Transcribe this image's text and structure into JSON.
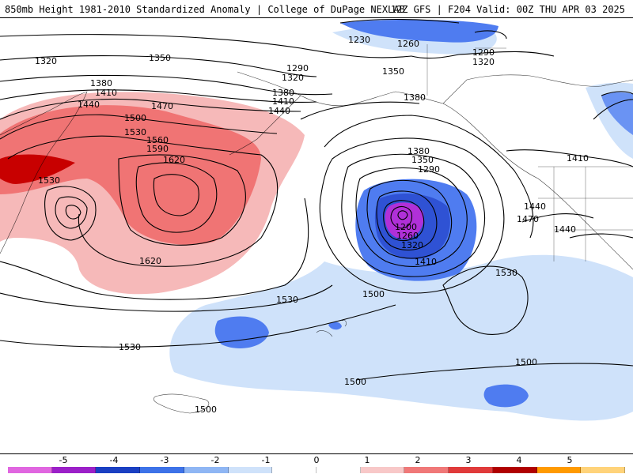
{
  "header": {
    "left_title": "850mb Height 1981-2010 Standardized Anomaly | College of DuPage NEXLAB",
    "right_title": "12Z GFS | F204 Valid: 00Z THU APR 03 2025"
  },
  "contour_labels": {
    "l1230": "1230",
    "l1260a": "1260",
    "l1290a": "1290",
    "l1320a": "1320",
    "l1320b": "1320",
    "l1350a": "1350",
    "l1290b": "1290",
    "l1320c": "1320",
    "l1350b": "1350",
    "l1380a": "1380",
    "l1410a": "1410",
    "l1440a": "1440",
    "l1470a": "1470",
    "l1500a": "1500",
    "l1530a": "1530",
    "l1560": "1560",
    "l1590": "1590",
    "l1620a": "1620",
    "l1380b": "1380",
    "l1410b": "1410",
    "l1440b": "1440",
    "l1380c": "1380",
    "l1380d": "1380",
    "l1350c": "1350",
    "l1290c": "1290",
    "l1200": "1200",
    "l1260b": "1260",
    "l1320d": "1320",
    "l1410c": "1410",
    "l1530b": "1530",
    "l1620b": "1620",
    "l1530c": "1530",
    "l1530d": "1530",
    "l1500b": "1500",
    "l1530e": "1530",
    "l1500c": "1500",
    "l1500d": "1500",
    "l1500e": "1500",
    "l1440c": "1440",
    "l1470b": "1470",
    "l1440d": "1440",
    "l1410d": "1410"
  },
  "colorbar": {
    "tick_labels": [
      "-5",
      "-4",
      "-3",
      "-2",
      "-1",
      "0",
      "1",
      "2",
      "3",
      "4",
      "5"
    ],
    "colors": [
      "#e066e0",
      "#9b20c8",
      "#1a3fc2",
      "#3d72e8",
      "#8fb6f4",
      "#cfe2fa",
      "#ffffff",
      "#ffffff",
      "#f8c8c8",
      "#f07878",
      "#e03a3a",
      "#b00000",
      "#ff9a00",
      "#ffd37a"
    ]
  },
  "colors": {
    "deep_blue": "#3560e0",
    "mid_blue": "#4f7cf0",
    "light_blue": "#cfe2fa",
    "purple": "#b030d8",
    "light_red": "#f6b9b9",
    "mid_red": "#f07474",
    "dark_red": "#c80000"
  }
}
